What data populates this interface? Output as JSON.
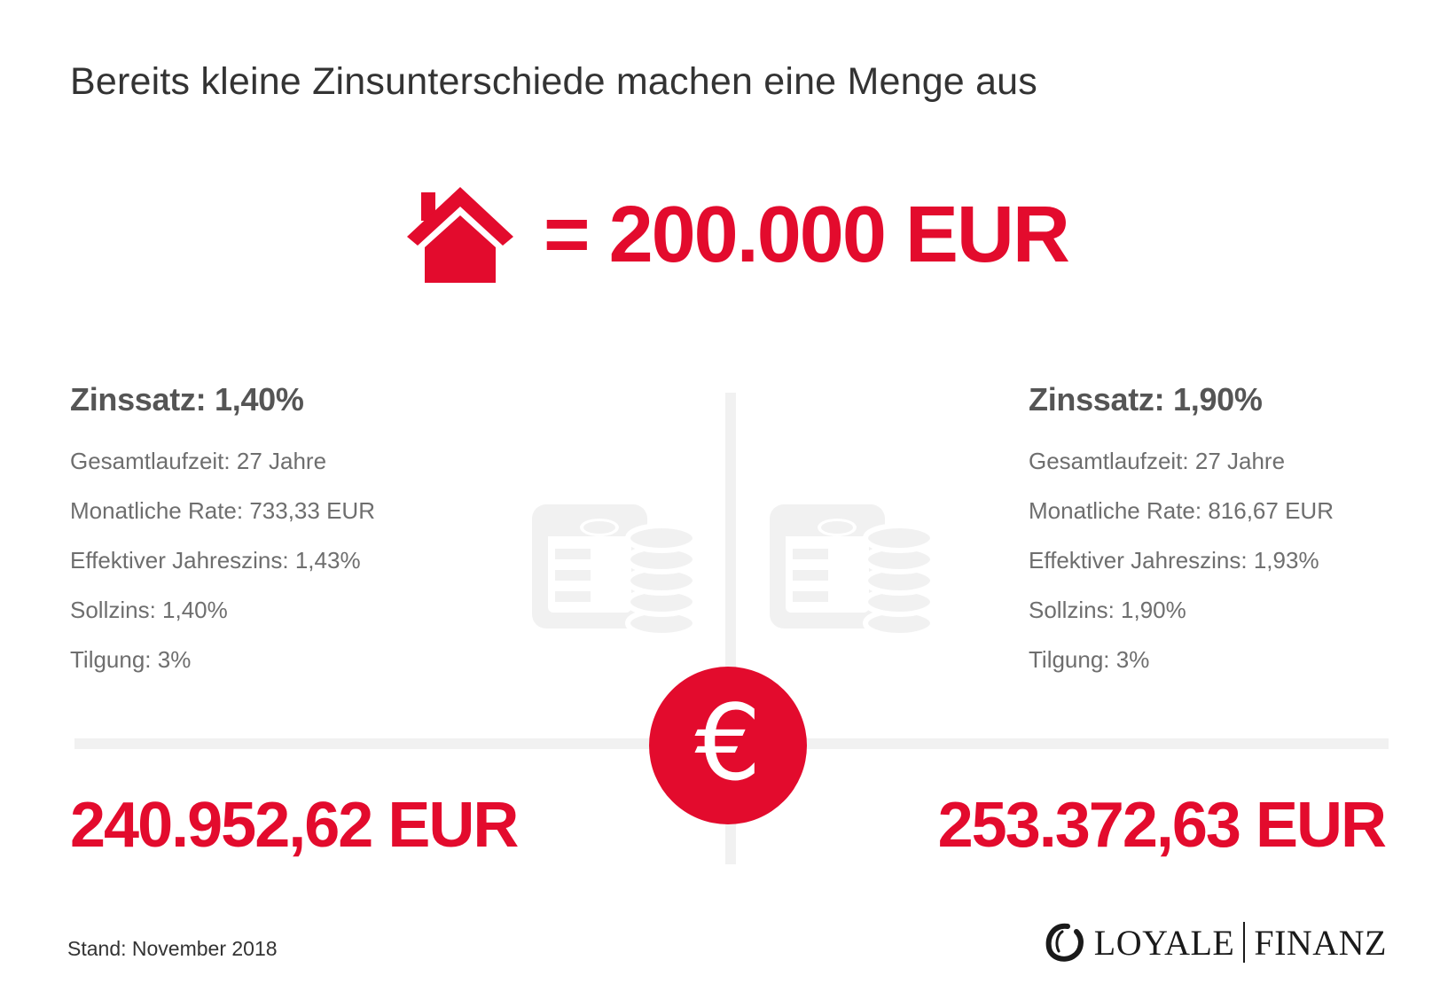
{
  "title": "Bereits kleine Zinsunterschiede machen eine Menge aus",
  "hero": {
    "icon": "house-icon",
    "amount": "= 200.000 EUR"
  },
  "left": {
    "heading": "Zinssatz: 1,40%",
    "rows": [
      "Gesamtlaufzeit: 27 Jahre",
      "Monatliche Rate: 733,33 EUR",
      "Effektiver Jahreszins: 1,43%",
      "Sollzins: 1,40%",
      "Tilgung: 3%"
    ],
    "total": "240.952,62 EUR"
  },
  "right": {
    "heading": "Zinssatz: 1,90%",
    "rows": [
      "Gesamtlaufzeit: 27 Jahre",
      "Monatliche Rate: 816,67 EUR",
      "Effektiver Jahreszins: 1,93%",
      "Sollzins: 1,90%",
      "Tilgung: 3%"
    ],
    "total": "253.372,63 EUR"
  },
  "center": {
    "icon": "euro-icon",
    "symbol": "€",
    "doc_icon": "document-coins-icon"
  },
  "footer": {
    "note": "Stand: November 2018",
    "logo_left": "LOYALE",
    "logo_right": "FINANZ",
    "logo_icon": "enso-circle-icon"
  },
  "colors": {
    "accent": "#e30b2d",
    "text_dark": "#333333",
    "text_gray": "#6e6e6e",
    "heading_gray": "#555555",
    "line_light": "#f1f1f1"
  }
}
